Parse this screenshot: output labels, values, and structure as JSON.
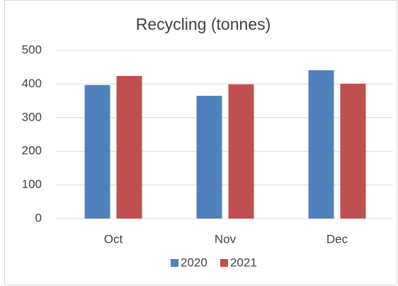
{
  "chart_data": {
    "type": "bar",
    "title": "Recycling (tonnes)",
    "categories": [
      "Oct",
      "Nov",
      "Dec"
    ],
    "series": [
      {
        "name": "2020",
        "color": "#4f81bd",
        "values": [
          397,
          365,
          441
        ]
      },
      {
        "name": "2021",
        "color": "#c0504d",
        "values": [
          424,
          399,
          401
        ]
      }
    ],
    "ylim": [
      0,
      500
    ],
    "yticks": [
      0,
      100,
      200,
      300,
      400,
      500
    ],
    "grid": true,
    "legend": "bottom"
  }
}
